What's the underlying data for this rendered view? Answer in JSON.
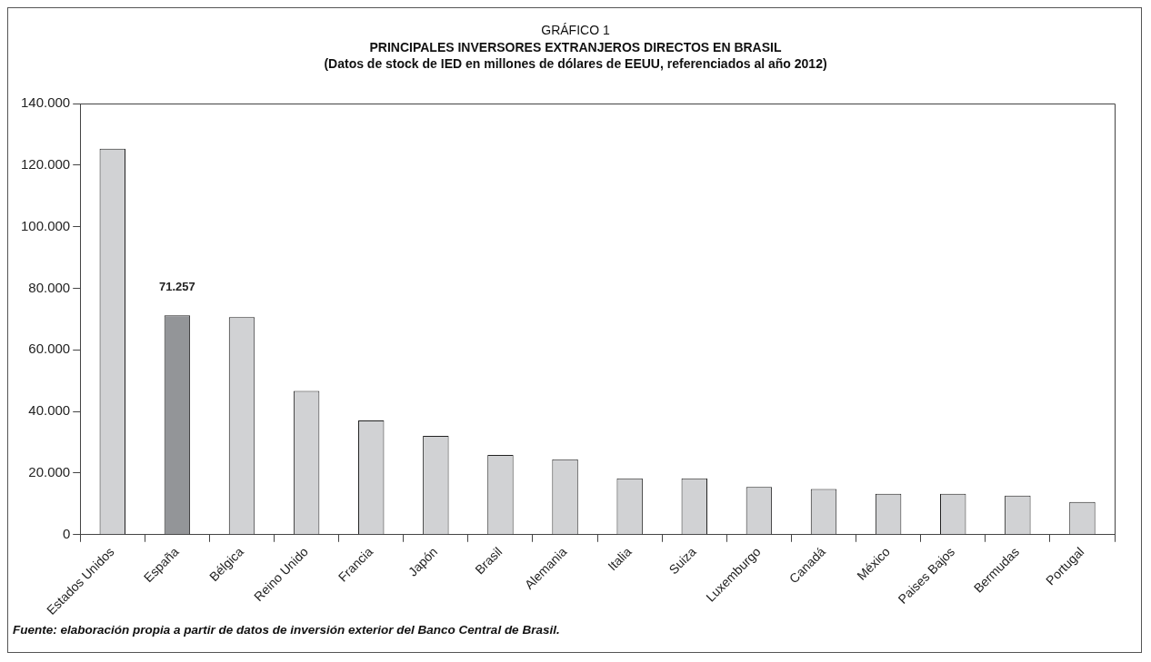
{
  "chart_data": {
    "type": "bar",
    "title": "GRÁFICO 1\nPRINCIPALES INVERSORES EXTRANJEROS DIRECTOS EN BRASIL",
    "subtitle": "(Datos de stock de IED en millones  de dólares de EEUU, referenciados al año 2012)",
    "categories": [
      "Estados Unidos",
      "España",
      "Bélgica",
      "Reino Unido",
      "Francia",
      "Japón",
      "Brasil",
      "Alemania",
      "Italia",
      "Suiza",
      "Luxemburgo",
      "Canadá",
      "México",
      "Paises Bajos",
      "Bermudas",
      "Portugal"
    ],
    "values": [
      125300,
      71257,
      70600,
      46700,
      37100,
      32100,
      25900,
      24500,
      18300,
      18300,
      15500,
      14800,
      13300,
      13300,
      12700,
      10600
    ],
    "colors": [
      "#d1d2d4",
      "#939598",
      "#d1d2d4",
      "#d1d2d4",
      "#d1d2d4",
      "#d1d2d4",
      "#d1d2d4",
      "#d1d2d4",
      "#d1d2d4",
      "#d1d2d4",
      "#d1d2d4",
      "#d1d2d4",
      "#d1d2d4",
      "#d1d2d4",
      "#d1d2d4",
      "#d1d2d4"
    ],
    "value_labels": [
      null,
      "71.257",
      null,
      null,
      null,
      null,
      null,
      null,
      null,
      null,
      null,
      null,
      null,
      null,
      null,
      null
    ],
    "ylim": [
      0,
      140000
    ],
    "yticks": [
      {
        "value": 0,
        "label": "0"
      },
      {
        "value": 20000,
        "label": "20.000"
      },
      {
        "value": 40000,
        "label": "40.000"
      },
      {
        "value": 60000,
        "label": "60.000"
      },
      {
        "value": 80000,
        "label": "80.000"
      },
      {
        "value": 100000,
        "label": "100.000"
      },
      {
        "value": 120000,
        "label": "120.000"
      },
      {
        "value": 140000,
        "label": "140.000"
      }
    ],
    "grid": false,
    "legend": false,
    "annotations": [
      "Fuente: elaboración propia a partir de datos de inversión exterior del Banco Central de Brasil."
    ]
  }
}
